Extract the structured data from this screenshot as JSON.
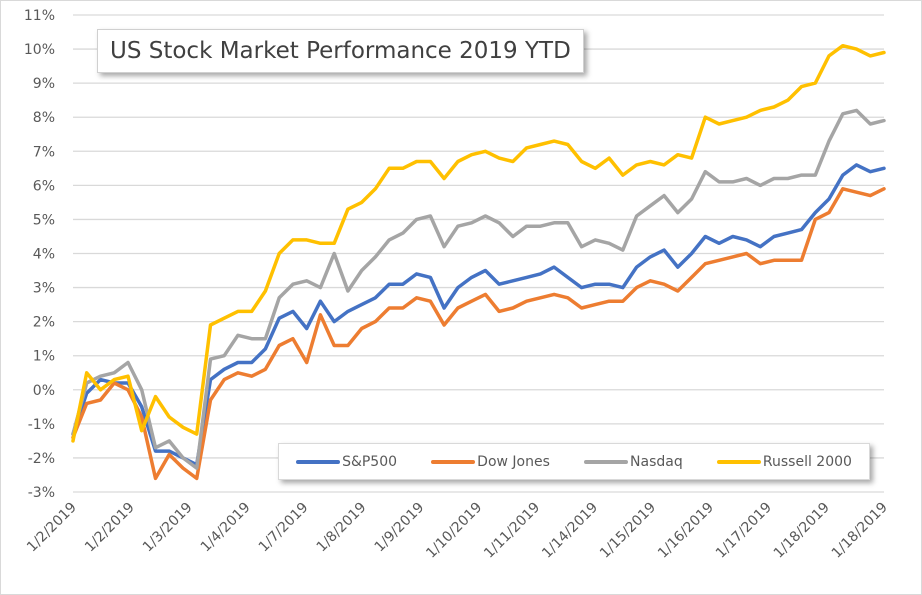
{
  "chart_data": {
    "type": "line",
    "title": "US Stock Market Performance 2019 YTD",
    "xlabel": "",
    "ylabel": "",
    "ylim": [
      -3,
      11
    ],
    "y_ticks": [
      "-3%",
      "-2%",
      "-1%",
      "0%",
      "1%",
      "2%",
      "3%",
      "4%",
      "5%",
      "6%",
      "7%",
      "8%",
      "9%",
      "10%",
      "11%"
    ],
    "y_tick_values": [
      -3,
      -2,
      -1,
      0,
      1,
      2,
      3,
      4,
      5,
      6,
      7,
      8,
      9,
      10,
      11
    ],
    "x_ticks": [
      "1/2/2019",
      "1/2/2019",
      "1/3/2019",
      "1/4/2019",
      "1/7/2019",
      "1/8/2019",
      "1/9/2019",
      "1/10/2019",
      "1/11/2019",
      "1/14/2019",
      "1/15/2019",
      "1/16/2019",
      "1/17/2019",
      "1/18/2019",
      "1/18/2019"
    ],
    "grid": true,
    "legend_position": "bottom-right",
    "series": [
      {
        "name": "S&P500",
        "color": "#4472c4",
        "values": [
          -1.3,
          -0.1,
          0.3,
          0.2,
          0.2,
          -0.5,
          -1.8,
          -1.8,
          -2.0,
          -2.2,
          0.3,
          0.6,
          0.8,
          0.8,
          1.2,
          2.1,
          2.3,
          1.8,
          2.6,
          2.0,
          2.3,
          2.5,
          2.7,
          3.1,
          3.1,
          3.4,
          3.3,
          2.4,
          3.0,
          3.3,
          3.5,
          3.1,
          3.2,
          3.3,
          3.4,
          3.6,
          3.3,
          3.0,
          3.1,
          3.1,
          3.0,
          3.6,
          3.9,
          4.1,
          3.6,
          4.0,
          4.5,
          4.3,
          4.5,
          4.4,
          4.2,
          4.5,
          4.6,
          4.7,
          5.2,
          5.6,
          6.3,
          6.6,
          6.4,
          6.5
        ]
      },
      {
        "name": "Dow Jones",
        "color": "#ed7d31",
        "values": [
          -1.4,
          -0.4,
          -0.3,
          0.2,
          0.0,
          -0.8,
          -2.6,
          -1.9,
          -2.3,
          -2.6,
          -0.3,
          0.3,
          0.5,
          0.4,
          0.6,
          1.3,
          1.5,
          0.8,
          2.2,
          1.3,
          1.3,
          1.8,
          2.0,
          2.4,
          2.4,
          2.7,
          2.6,
          1.9,
          2.4,
          2.6,
          2.8,
          2.3,
          2.4,
          2.6,
          2.7,
          2.8,
          2.7,
          2.4,
          2.5,
          2.6,
          2.6,
          3.0,
          3.2,
          3.1,
          2.9,
          3.3,
          3.7,
          3.8,
          3.9,
          4.0,
          3.7,
          3.8,
          3.8,
          3.8,
          5.0,
          5.2,
          5.9,
          5.8,
          5.7,
          5.9
        ]
      },
      {
        "name": "Nasdaq",
        "color": "#a5a5a5",
        "values": [
          -1.3,
          0.2,
          0.4,
          0.5,
          0.8,
          0.0,
          -1.7,
          -1.5,
          -2.0,
          -2.3,
          0.9,
          1.0,
          1.6,
          1.5,
          1.5,
          2.7,
          3.1,
          3.2,
          3.0,
          4.0,
          2.9,
          3.5,
          3.9,
          4.4,
          4.6,
          5.0,
          5.1,
          4.2,
          4.8,
          4.9,
          5.1,
          4.9,
          4.5,
          4.8,
          4.8,
          4.9,
          4.9,
          4.2,
          4.4,
          4.3,
          4.1,
          5.1,
          5.4,
          5.7,
          5.2,
          5.6,
          6.4,
          6.1,
          6.1,
          6.2,
          6.0,
          6.2,
          6.2,
          6.3,
          6.3,
          7.3,
          8.1,
          8.2,
          7.8,
          7.9
        ]
      },
      {
        "name": "Russell 2000",
        "color": "#ffc000",
        "values": [
          -1.5,
          0.5,
          0.0,
          0.3,
          0.4,
          -1.2,
          -0.2,
          -0.8,
          -1.1,
          -1.3,
          1.9,
          2.1,
          2.3,
          2.3,
          2.9,
          4.0,
          4.4,
          4.4,
          4.3,
          4.3,
          5.3,
          5.5,
          5.9,
          6.5,
          6.5,
          6.7,
          6.7,
          6.2,
          6.7,
          6.9,
          7.0,
          6.8,
          6.7,
          7.1,
          7.2,
          7.3,
          7.2,
          6.7,
          6.5,
          6.8,
          6.3,
          6.6,
          6.7,
          6.6,
          6.9,
          6.8,
          8.0,
          7.8,
          7.9,
          8.0,
          8.2,
          8.3,
          8.5,
          8.9,
          9.0,
          9.8,
          10.1,
          10.0,
          9.8,
          9.9
        ]
      }
    ]
  }
}
